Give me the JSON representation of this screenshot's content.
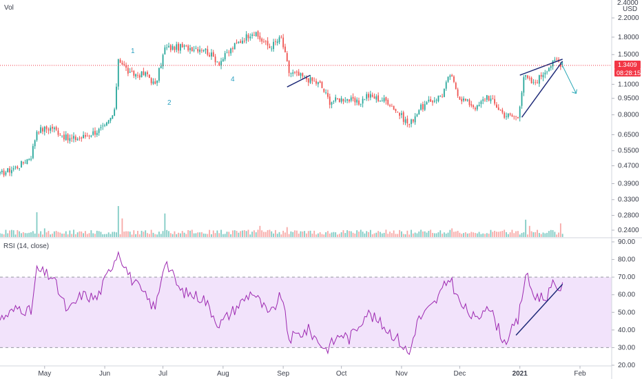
{
  "header": {
    "volume_label": "Vol",
    "currency_top": "2.4000",
    "currency": "USD"
  },
  "rsi_pane": {
    "title": "RSI (14, close)"
  },
  "price_tags": {
    "last_price": "1.3409",
    "countdown": "08:28:15"
  },
  "colors": {
    "up": "#26a69a",
    "down": "#ef5350",
    "vol_up": "#80cbc4",
    "vol_down": "#f7a8a6",
    "rsi_line": "#9c27b0",
    "rsi_band": "#f2e3fb",
    "last_price": "#f23645",
    "trendline": "#1e2a78",
    "arrow": "#26a6b5",
    "wave_label": "#2aa0c0"
  },
  "wave_labels": [
    "1",
    "2",
    "4"
  ],
  "chart_data": [
    {
      "type": "candlestick",
      "title": "",
      "x_ticks": [
        "May",
        "Jun",
        "Jul",
        "Aug",
        "Sep",
        "Oct",
        "Nov",
        "Dec",
        "2021",
        "Feb"
      ],
      "y_scale": "log",
      "y_ticks": [
        "2.2000",
        "1.8000",
        "1.5000",
        "1.1000",
        "0.9500",
        "0.8000",
        "0.6500",
        "0.5500",
        "0.4700",
        "0.3900",
        "0.3300",
        "0.2800",
        "0.2400"
      ],
      "last_price": 1.3409,
      "anchors": [
        {
          "x": "2020-04-08",
          "y": 0.43
        },
        {
          "x": "2020-04-18",
          "y": 0.47
        },
        {
          "x": "2020-04-24",
          "y": 0.52
        },
        {
          "x": "2020-04-27",
          "y": 0.68
        },
        {
          "x": "2020-05-05",
          "y": 0.7
        },
        {
          "x": "2020-05-13",
          "y": 0.62
        },
        {
          "x": "2020-05-20",
          "y": 0.63
        },
        {
          "x": "2020-06-01",
          "y": 0.7
        },
        {
          "x": "2020-06-06",
          "y": 0.82
        },
        {
          "x": "2020-06-08",
          "y": 1.45
        },
        {
          "x": "2020-06-14",
          "y": 1.22
        },
        {
          "x": "2020-06-23",
          "y": 1.22
        },
        {
          "x": "2020-06-27",
          "y": 1.08
        },
        {
          "x": "2020-07-02",
          "y": 1.6
        },
        {
          "x": "2020-07-10",
          "y": 1.62
        },
        {
          "x": "2020-07-22",
          "y": 1.6
        },
        {
          "x": "2020-07-30",
          "y": 1.38
        },
        {
          "x": "2020-08-07",
          "y": 1.65
        },
        {
          "x": "2020-08-16",
          "y": 1.9
        },
        {
          "x": "2020-08-25",
          "y": 1.62
        },
        {
          "x": "2020-08-31",
          "y": 1.78
        },
        {
          "x": "2020-09-04",
          "y": 1.25
        },
        {
          "x": "2020-09-12",
          "y": 1.18
        },
        {
          "x": "2020-09-20",
          "y": 1.1
        },
        {
          "x": "2020-09-25",
          "y": 0.92
        },
        {
          "x": "2020-10-03",
          "y": 0.95
        },
        {
          "x": "2020-10-10",
          "y": 0.9
        },
        {
          "x": "2020-10-14",
          "y": 0.98
        },
        {
          "x": "2020-10-25",
          "y": 0.92
        },
        {
          "x": "2020-11-05",
          "y": 0.72
        },
        {
          "x": "2020-11-10",
          "y": 0.85
        },
        {
          "x": "2020-11-22",
          "y": 0.99
        },
        {
          "x": "2020-11-26",
          "y": 1.22
        },
        {
          "x": "2020-12-01",
          "y": 0.96
        },
        {
          "x": "2020-12-10",
          "y": 0.86
        },
        {
          "x": "2020-12-15",
          "y": 0.98
        },
        {
          "x": "2020-12-24",
          "y": 0.8
        },
        {
          "x": "2020-12-31",
          "y": 0.78
        },
        {
          "x": "2021-01-03",
          "y": 1.2
        },
        {
          "x": "2021-01-08",
          "y": 1.1
        },
        {
          "x": "2021-01-15",
          "y": 1.3
        },
        {
          "x": "2021-01-20",
          "y": 1.42
        },
        {
          "x": "2021-01-23",
          "y": 1.34
        }
      ],
      "rising_wedge": {
        "upper": [
          {
            "x": "2021-01-01",
            "y": 1.21
          },
          {
            "x": "2021-01-23",
            "y": 1.43
          }
        ],
        "lower": [
          {
            "x": "2021-01-02",
            "y": 0.78
          },
          {
            "x": "2021-01-23",
            "y": 1.4
          }
        ]
      },
      "sep_trendline": [
        {
          "x": "2020-09-03",
          "y": 1.07
        },
        {
          "x": "2020-09-15",
          "y": 1.21
        }
      ],
      "projection": [
        {
          "x": "2021-01-22",
          "y": 1.39
        },
        {
          "x": "2021-01-30",
          "y": 1.0
        }
      ]
    },
    {
      "type": "line",
      "title": "RSI (14, close)",
      "x_ticks": [
        "May",
        "Jun",
        "Jul",
        "Aug",
        "Sep",
        "Oct",
        "Nov",
        "Dec",
        "2021",
        "Feb"
      ],
      "y_ticks": [
        "90.00",
        "80.00",
        "70.00",
        "60.00",
        "50.00",
        "40.00",
        "30.00",
        "20.00"
      ],
      "ylim": [
        20,
        90
      ],
      "bands": [
        30,
        70
      ],
      "points": [
        {
          "x": "2020-04-08",
          "y": 46
        },
        {
          "x": "2020-04-18",
          "y": 53
        },
        {
          "x": "2020-04-24",
          "y": 50
        },
        {
          "x": "2020-04-27",
          "y": 74
        },
        {
          "x": "2020-05-05",
          "y": 70
        },
        {
          "x": "2020-05-13",
          "y": 50
        },
        {
          "x": "2020-05-20",
          "y": 60
        },
        {
          "x": "2020-05-28",
          "y": 58
        },
        {
          "x": "2020-06-08",
          "y": 85
        },
        {
          "x": "2020-06-14",
          "y": 70
        },
        {
          "x": "2020-06-27",
          "y": 52
        },
        {
          "x": "2020-07-02",
          "y": 80
        },
        {
          "x": "2020-07-10",
          "y": 62
        },
        {
          "x": "2020-07-22",
          "y": 58
        },
        {
          "x": "2020-07-30",
          "y": 43
        },
        {
          "x": "2020-08-07",
          "y": 52
        },
        {
          "x": "2020-08-16",
          "y": 62
        },
        {
          "x": "2020-08-25",
          "y": 48
        },
        {
          "x": "2020-08-31",
          "y": 60
        },
        {
          "x": "2020-09-04",
          "y": 35
        },
        {
          "x": "2020-09-14",
          "y": 40
        },
        {
          "x": "2020-09-23",
          "y": 29
        },
        {
          "x": "2020-10-01",
          "y": 38
        },
        {
          "x": "2020-10-05",
          "y": 35
        },
        {
          "x": "2020-10-14",
          "y": 50
        },
        {
          "x": "2020-10-22",
          "y": 43
        },
        {
          "x": "2020-10-30",
          "y": 35
        },
        {
          "x": "2020-11-05",
          "y": 26
        },
        {
          "x": "2020-11-09",
          "y": 45
        },
        {
          "x": "2020-11-18",
          "y": 55
        },
        {
          "x": "2020-11-26",
          "y": 70
        },
        {
          "x": "2020-12-01",
          "y": 55
        },
        {
          "x": "2020-12-10",
          "y": 45
        },
        {
          "x": "2020-12-15",
          "y": 56
        },
        {
          "x": "2020-12-24",
          "y": 33
        },
        {
          "x": "2020-12-31",
          "y": 45
        },
        {
          "x": "2021-01-04",
          "y": 72
        },
        {
          "x": "2021-01-08",
          "y": 60
        },
        {
          "x": "2021-01-14",
          "y": 58
        },
        {
          "x": "2021-01-18",
          "y": 65
        },
        {
          "x": "2021-01-23",
          "y": 64
        }
      ],
      "trendline": [
        {
          "x": "2020-12-30",
          "y": 37
        },
        {
          "x": "2021-01-23",
          "y": 66
        }
      ]
    },
    {
      "type": "bar",
      "title": "Vol",
      "spikes": [
        {
          "x": "2020-04-27",
          "v": 1.0
        },
        {
          "x": "2020-06-08",
          "v": 1.25
        },
        {
          "x": "2020-06-10",
          "v": 0.75
        },
        {
          "x": "2020-07-02",
          "v": 0.95
        },
        {
          "x": "2020-05-01",
          "v": 0.35
        },
        {
          "x": "2020-08-20",
          "v": 0.45
        },
        {
          "x": "2020-09-03",
          "v": 0.4
        },
        {
          "x": "2020-11-27",
          "v": 0.35
        },
        {
          "x": "2021-01-04",
          "v": 0.7
        },
        {
          "x": "2021-01-06",
          "v": 0.45
        },
        {
          "x": "2021-01-22",
          "v": 0.55
        }
      ]
    }
  ]
}
